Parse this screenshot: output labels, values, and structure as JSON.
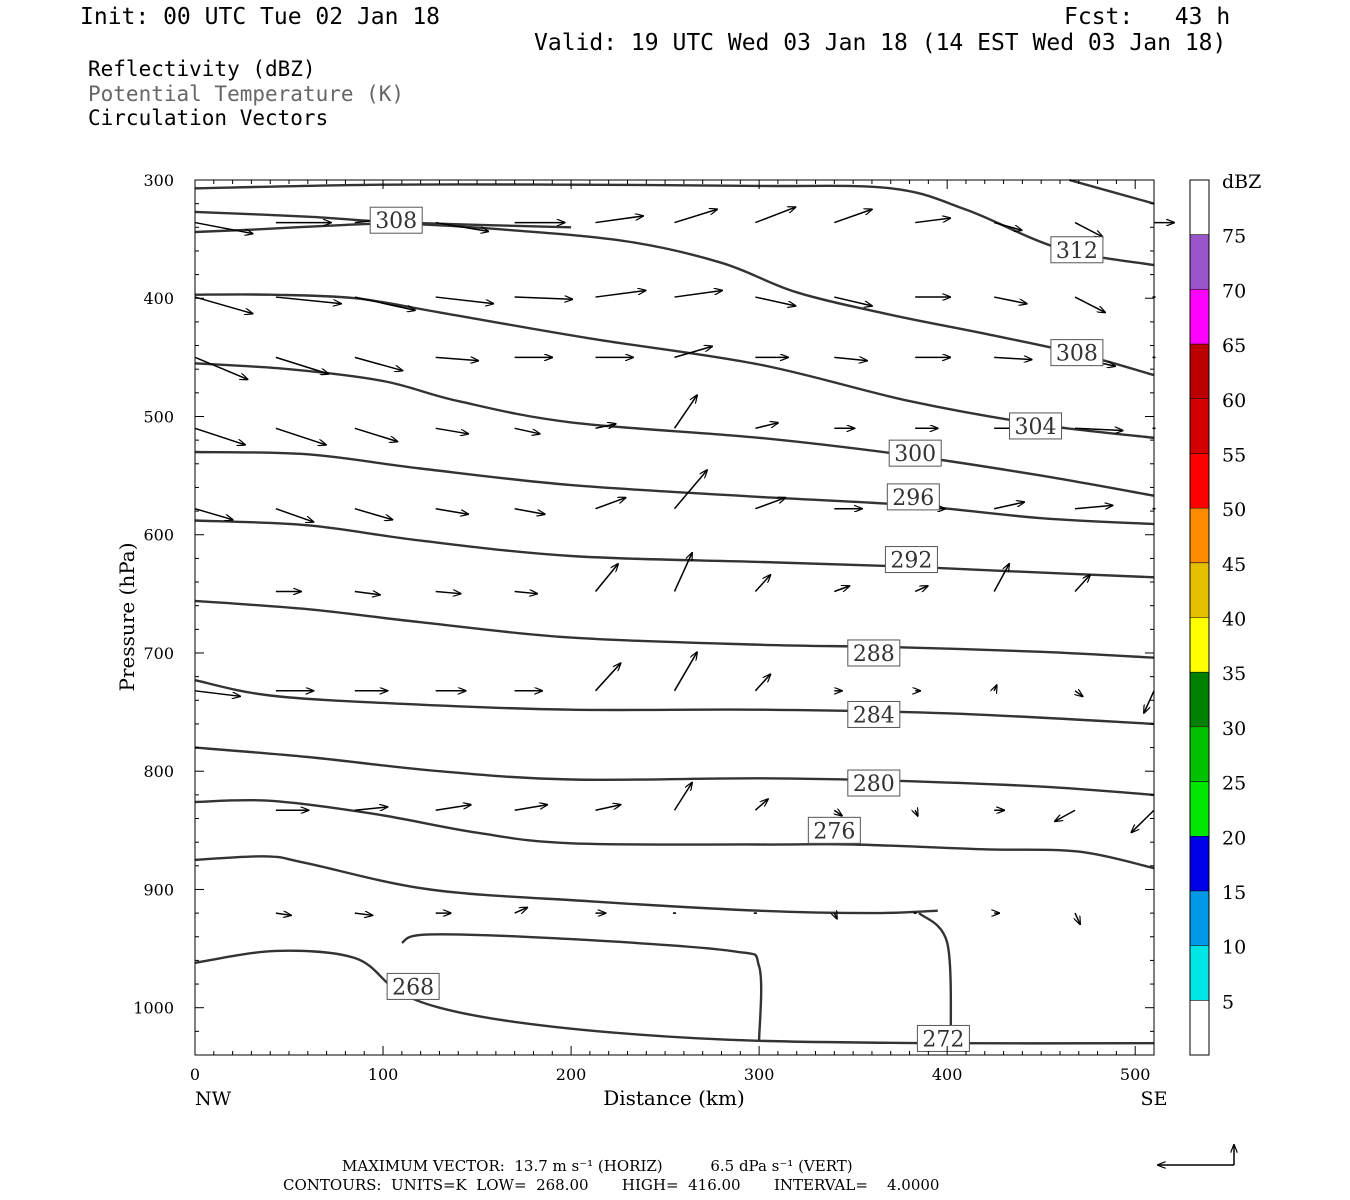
{
  "header": {
    "init": "Init: 00 UTC Tue 02 Jan 18",
    "fcst": "Fcst:   43 h",
    "valid": "Valid: 19 UTC Wed 03 Jan 18 (14 EST Wed 03 Jan 18)"
  },
  "legend": {
    "line1": "Reflectivity (dBZ)",
    "line2": "Potential Temperature (K)",
    "line3": "Circulation Vectors",
    "line2_color": "#666666"
  },
  "footer": {
    "max_vector": "MAXIMUM VECTOR:  13.7 m s⁻¹ (HORIZ)          6.5 dPa s⁻¹ (VERT)",
    "contours": "CONTOURS:  UNITS=K  LOW=  268.00       HIGH=  416.00       INTERVAL=    4.0000"
  },
  "chart_data": {
    "type": "contour",
    "xlabel": "Distance (km)",
    "ylabel": "Pressure (hPa)",
    "xlim": [
      0,
      510
    ],
    "ylim": [
      1040,
      300
    ],
    "x_ticks": [
      0,
      100,
      200,
      300,
      400,
      500
    ],
    "y_ticks": [
      300,
      400,
      500,
      600,
      700,
      800,
      900,
      1000
    ],
    "x_end_labels": {
      "left": "NW",
      "right": "SE"
    },
    "colorbar": {
      "title": "dBZ",
      "levels": [
        5,
        10,
        15,
        20,
        25,
        30,
        35,
        40,
        45,
        50,
        55,
        60,
        65,
        70,
        75
      ],
      "colors": [
        "#ffffff",
        "#00e6e6",
        "#0099e6",
        "#0000e6",
        "#00e600",
        "#00c000",
        "#008000",
        "#ffff00",
        "#e6bf00",
        "#ff8c00",
        "#ff0000",
        "#d40000",
        "#bc0000",
        "#ff00ff",
        "#9955c9",
        "#ffffff"
      ]
    },
    "contours": [
      {
        "label": "268",
        "points": [
          [
            0,
            962
          ],
          [
            43,
            952
          ],
          [
            85,
            958
          ],
          [
            107,
            985
          ],
          [
            130,
            1000
          ],
          [
            170,
            1012
          ],
          [
            230,
            1022
          ],
          [
            300,
            1028
          ],
          [
            400,
            1030
          ],
          [
            510,
            1030
          ]
        ],
        "label_at": [
          116,
          982
        ]
      },
      {
        "label": "272",
        "points": [
          [
            110,
            945
          ],
          [
            125,
            938
          ],
          [
            200,
            942
          ],
          [
            285,
            952
          ],
          [
            300,
            965
          ],
          [
            300,
            1028
          ]
        ],
        "label_at": null
      },
      {
        "label": "272",
        "points": [
          [
            385,
            920
          ],
          [
            400,
            945
          ],
          [
            402,
            1028
          ]
        ],
        "label_at": [
          398,
          1026
        ]
      },
      {
        "label": "276",
        "points": [
          [
            0,
            875
          ],
          [
            38,
            872
          ],
          [
            60,
            878
          ],
          [
            125,
            900
          ],
          [
            210,
            910
          ],
          [
            300,
            918
          ],
          [
            360,
            920
          ],
          [
            395,
            918
          ]
        ],
        "label_at": null
      },
      {
        "label": "276",
        "points": [
          [
            0,
            826
          ],
          [
            40,
            825
          ],
          [
            95,
            836
          ],
          [
            150,
            852
          ],
          [
            200,
            861
          ],
          [
            300,
            862
          ],
          [
            350,
            862
          ],
          [
            420,
            866
          ],
          [
            470,
            868
          ],
          [
            510,
            882
          ]
        ],
        "label_at": [
          340,
          850
        ]
      },
      {
        "label": "280",
        "points": [
          [
            0,
            780
          ],
          [
            60,
            788
          ],
          [
            130,
            800
          ],
          [
            200,
            807
          ],
          [
            300,
            806
          ],
          [
            370,
            808
          ],
          [
            450,
            813
          ],
          [
            510,
            820
          ]
        ],
        "label_at": [
          361,
          810
        ]
      },
      {
        "label": "284",
        "points": [
          [
            0,
            723
          ],
          [
            40,
            736
          ],
          [
            110,
            743
          ],
          [
            200,
            748
          ],
          [
            300,
            748
          ],
          [
            400,
            751
          ],
          [
            510,
            760
          ]
        ],
        "label_at": [
          361,
          752
        ]
      },
      {
        "label": "288",
        "points": [
          [
            0,
            656
          ],
          [
            60,
            663
          ],
          [
            120,
            674
          ],
          [
            200,
            687
          ],
          [
            300,
            693
          ],
          [
            370,
            695
          ],
          [
            450,
            699
          ],
          [
            510,
            704
          ]
        ],
        "label_at": [
          361,
          700
        ]
      },
      {
        "label": "292",
        "points": [
          [
            0,
            588
          ],
          [
            60,
            592
          ],
          [
            120,
            605
          ],
          [
            200,
            618
          ],
          [
            300,
            623
          ],
          [
            380,
            627
          ],
          [
            450,
            632
          ],
          [
            510,
            636
          ]
        ],
        "label_at": [
          381,
          621
        ]
      },
      {
        "label": "296",
        "points": [
          [
            0,
            530
          ],
          [
            60,
            532
          ],
          [
            120,
            544
          ],
          [
            200,
            558
          ],
          [
            300,
            568
          ],
          [
            380,
            575
          ],
          [
            450,
            586
          ],
          [
            510,
            591
          ]
        ],
        "label_at": [
          382,
          568
        ]
      },
      {
        "label": "300",
        "points": [
          [
            0,
            455
          ],
          [
            50,
            460
          ],
          [
            100,
            470
          ],
          [
            140,
            487
          ],
          [
            200,
            505
          ],
          [
            300,
            518
          ],
          [
            380,
            533
          ],
          [
            450,
            550
          ],
          [
            510,
            567
          ]
        ],
        "label_at": [
          383,
          531
        ]
      },
      {
        "label": "304",
        "points": [
          [
            0,
            397
          ],
          [
            40,
            397
          ],
          [
            85,
            400
          ],
          [
            130,
            412
          ],
          [
            210,
            434
          ],
          [
            300,
            456
          ],
          [
            380,
            487
          ],
          [
            450,
            507
          ],
          [
            510,
            518
          ]
        ],
        "label_at": [
          447,
          508
        ]
      },
      {
        "label": "308",
        "points": [
          [
            0,
            344
          ],
          [
            30,
            342
          ],
          [
            80,
            338
          ],
          [
            110,
            337
          ],
          [
            165,
            342
          ],
          [
            230,
            352
          ],
          [
            280,
            370
          ],
          [
            320,
            395
          ],
          [
            370,
            414
          ],
          [
            420,
            430
          ],
          [
            470,
            447
          ],
          [
            510,
            465
          ]
        ],
        "label_at": [
          469,
          446
        ]
      },
      {
        "label": "308",
        "points": [
          [
            0,
            327
          ],
          [
            60,
            331
          ],
          [
            110,
            336
          ],
          [
            200,
            340
          ]
        ],
        "label_at": [
          107,
          334
        ]
      },
      {
        "label": "312",
        "points": [
          [
            0,
            307
          ],
          [
            100,
            304
          ],
          [
            200,
            304
          ],
          [
            300,
            305
          ],
          [
            370,
            307
          ],
          [
            410,
            325
          ],
          [
            460,
            358
          ],
          [
            510,
            372
          ]
        ],
        "label_at": [
          469,
          359
        ]
      },
      {
        "label": "",
        "points": [
          [
            465,
            300
          ],
          [
            510,
            320
          ]
        ],
        "label_at": null
      }
    ],
    "vectors": [
      {
        "x": [
          0,
          43,
          85,
          128,
          170,
          213,
          255,
          298,
          340,
          383,
          425,
          468,
          510
        ],
        "p": 336,
        "u": [
          2.3,
          2.2,
          2.4,
          2.1,
          2.0,
          1.9,
          1.7,
          1.6,
          1.5,
          1.4,
          1.1,
          1.1,
          0.8
        ],
        "w": [
          0.1,
          0.0,
          -0.06,
          0.08,
          0.0,
          -0.06,
          -0.12,
          -0.14,
          -0.12,
          -0.04,
          0.07,
          0.13,
          0.0
        ]
      },
      {
        "x": [
          0,
          43,
          85,
          128,
          170,
          213,
          255,
          298,
          340,
          383,
          425,
          468,
          510
        ],
        "p": 399,
        "u": [
          2.3,
          2.6,
          2.4,
          2.3,
          2.3,
          2.0,
          1.9,
          1.6,
          1.5,
          1.4,
          1.3,
          1.2,
          0.0
        ],
        "w": [
          0.15,
          0.06,
          0.12,
          0.06,
          0.02,
          -0.06,
          -0.06,
          0.08,
          0.08,
          0.0,
          0.06,
          0.14,
          0.0
        ]
      },
      {
        "x": [
          0,
          43,
          85,
          128,
          170,
          213,
          255,
          298,
          340,
          383,
          425,
          468,
          510
        ],
        "p": 450,
        "u": [
          2.1,
          2.1,
          1.9,
          1.7,
          1.5,
          1.5,
          1.5,
          1.3,
          1.3,
          1.4,
          1.5,
          1.6,
          0.0
        ],
        "w": [
          0.2,
          0.15,
          0.12,
          0.03,
          0.0,
          0.0,
          -0.1,
          0.0,
          0.03,
          0.0,
          0.02,
          0.08,
          0.0
        ]
      },
      {
        "x": [
          0,
          43,
          85,
          128,
          170,
          213,
          255,
          298,
          340,
          383,
          425,
          468,
          510
        ],
        "p": 510,
        "u": [
          2.0,
          2.0,
          1.7,
          1.3,
          1.0,
          0.8,
          0.9,
          0.9,
          0.8,
          0.9,
          1.5,
          1.9,
          0.0
        ],
        "w": [
          0.15,
          0.15,
          0.12,
          0.05,
          0.05,
          -0.04,
          -0.3,
          -0.05,
          0.0,
          0.0,
          0.0,
          0.02,
          0.0
        ]
      },
      {
        "x": [
          0,
          43,
          85,
          128,
          170,
          213,
          255,
          298,
          340,
          383,
          425,
          468,
          510
        ],
        "p": 578,
        "u": [
          1.5,
          1.5,
          1.5,
          1.3,
          1.2,
          1.2,
          1.3,
          1.2,
          1.1,
          1.2,
          1.2,
          1.5,
          0.0
        ],
        "w": [
          0.1,
          0.12,
          0.1,
          0.05,
          0.05,
          -0.1,
          -0.35,
          -0.1,
          0.0,
          0.0,
          -0.06,
          -0.03,
          0.0
        ]
      },
      {
        "x": [
          43,
          85,
          128,
          170,
          213,
          255,
          298,
          340,
          383,
          425,
          468
        ],
        "p": 648,
        "u": [
          1.0,
          1.0,
          1.0,
          0.9,
          0.9,
          0.7,
          0.6,
          0.6,
          0.5,
          0.6,
          0.6
        ],
        "w": [
          0.0,
          0.03,
          0.02,
          0.02,
          -0.25,
          -0.35,
          -0.15,
          -0.05,
          -0.05,
          -0.25,
          -0.15
        ]
      },
      {
        "x": [
          0,
          43,
          85,
          128,
          170,
          213,
          255,
          298,
          340,
          383,
          425,
          468,
          510
        ],
        "p": 732,
        "u": [
          1.8,
          1.5,
          1.3,
          1.2,
          1.1,
          1.0,
          0.9,
          0.6,
          0.3,
          0.2,
          0.1,
          0.3,
          -0.4
        ],
        "w": [
          0.05,
          0.0,
          0.0,
          0.0,
          0.0,
          -0.25,
          -0.35,
          -0.15,
          0.0,
          0.0,
          -0.05,
          0.05,
          0.2
        ]
      },
      {
        "x": [
          43,
          85,
          128,
          170,
          213,
          255,
          298,
          340,
          383,
          425,
          468,
          510
        ],
        "p": 833,
        "u": [
          1.3,
          1.3,
          1.4,
          1.3,
          1.0,
          0.7,
          0.5,
          0.3,
          0.1,
          0.4,
          -0.8,
          -0.9
        ],
        "w": [
          0.0,
          -0.03,
          -0.05,
          -0.05,
          -0.05,
          -0.25,
          -0.1,
          0.05,
          0.05,
          0.0,
          0.1,
          0.2
        ]
      },
      {
        "x": [
          43,
          85,
          128,
          170,
          213,
          255,
          298,
          340,
          383,
          425,
          468
        ],
        "p": 920,
        "u": [
          0.6,
          0.7,
          0.6,
          0.5,
          0.4,
          0.05,
          0.1,
          0.1,
          0.1,
          0.2,
          0.2
        ],
        "w": [
          0.02,
          0.02,
          0.0,
          -0.05,
          0.0,
          0.0,
          0.0,
          0.05,
          0.0,
          0.0,
          0.1
        ]
      }
    ]
  }
}
